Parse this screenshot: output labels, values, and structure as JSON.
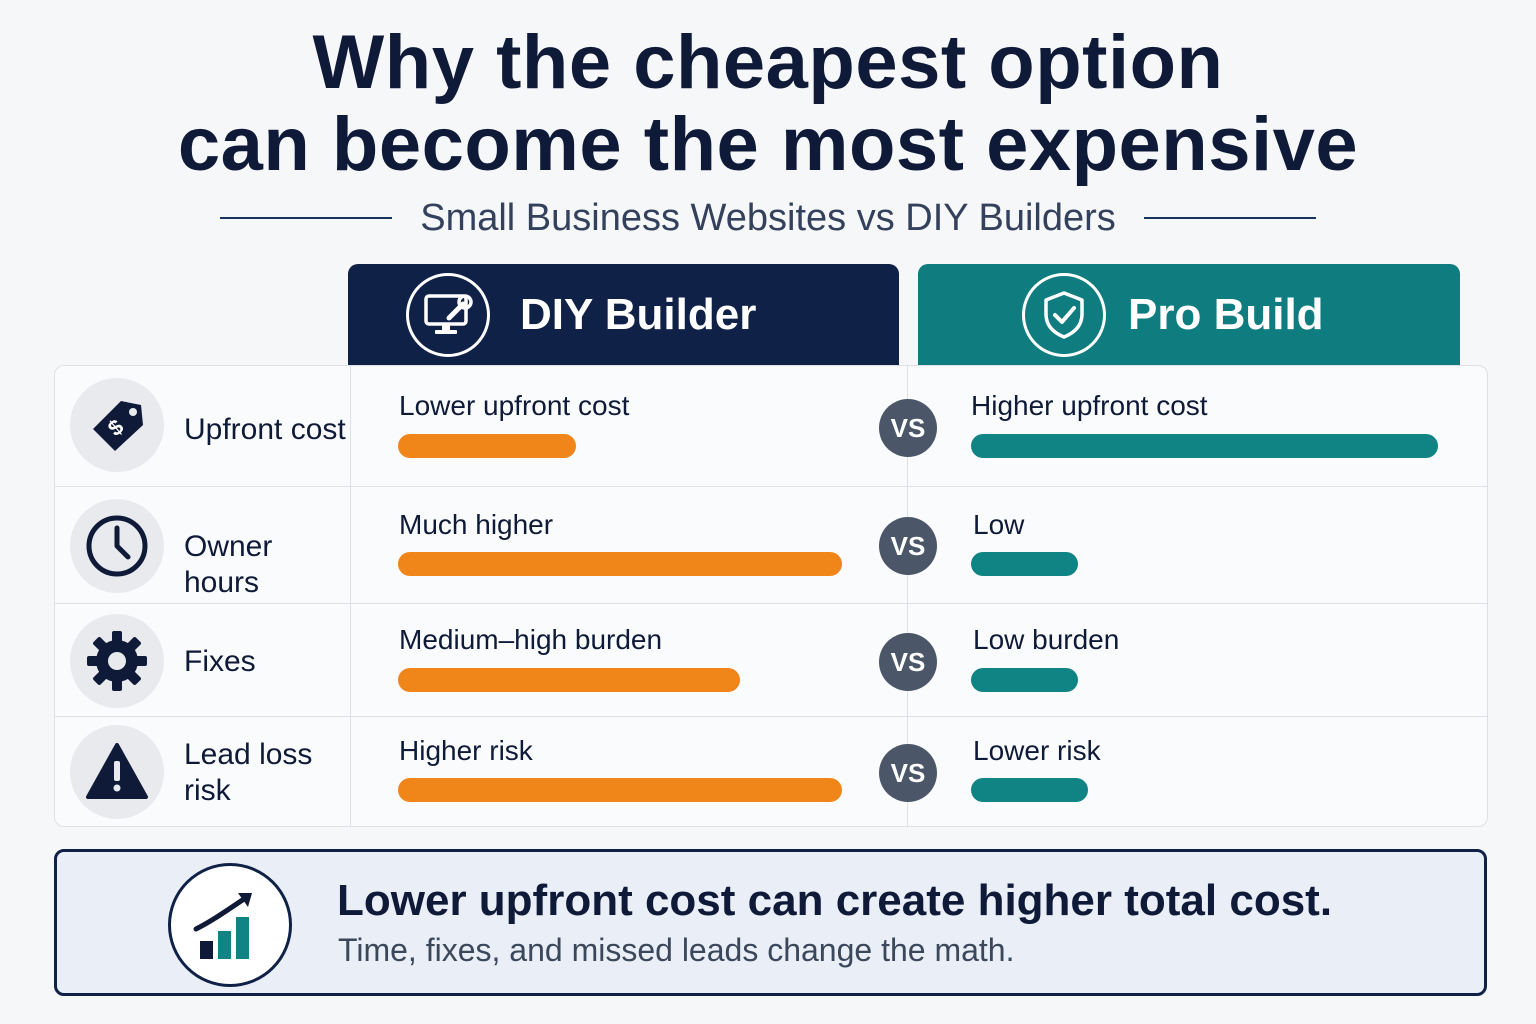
{
  "title_line1": "Why the cheapest option",
  "title_line2": "can become the most expensive",
  "subtitle": "Small Business Websites vs DIY Builders",
  "columns": {
    "diy": {
      "label": "DIY Builder",
      "icon": "monitor-wrench-icon",
      "color": "#0f2147"
    },
    "pro": {
      "label": "Pro Build",
      "icon": "shield-check-icon",
      "color": "#0f7d80"
    }
  },
  "vs_label": "VS",
  "rows": [
    {
      "label": "Upfront cost",
      "icon": "price-tag-icon",
      "diy_text": "Lower upfront cost",
      "diy_level": 0.4,
      "pro_text": "Higher upfront cost",
      "pro_level": 1.0
    },
    {
      "label": "Owner hours",
      "icon": "clock-icon",
      "diy_text": "Much higher",
      "diy_level": 1.0,
      "pro_text": "Low",
      "pro_level": 0.23
    },
    {
      "label": "Fixes",
      "icon": "gear-icon",
      "diy_text": "Medium–high burden",
      "diy_level": 0.77,
      "pro_text": "Low burden",
      "pro_level": 0.23
    },
    {
      "label": "Lead loss risk",
      "icon": "warning-icon",
      "diy_text": "Higher risk",
      "diy_level": 1.0,
      "pro_text": "Lower risk",
      "pro_level": 0.25
    }
  ],
  "colors": {
    "orange_bar": "#f08519",
    "teal_bar": "#108385"
  },
  "callout": {
    "icon": "growth-chart-icon",
    "title": "Lower upfront cost can create higher total cost.",
    "subtitle": "Time, fixes, and missed leads change the math."
  }
}
